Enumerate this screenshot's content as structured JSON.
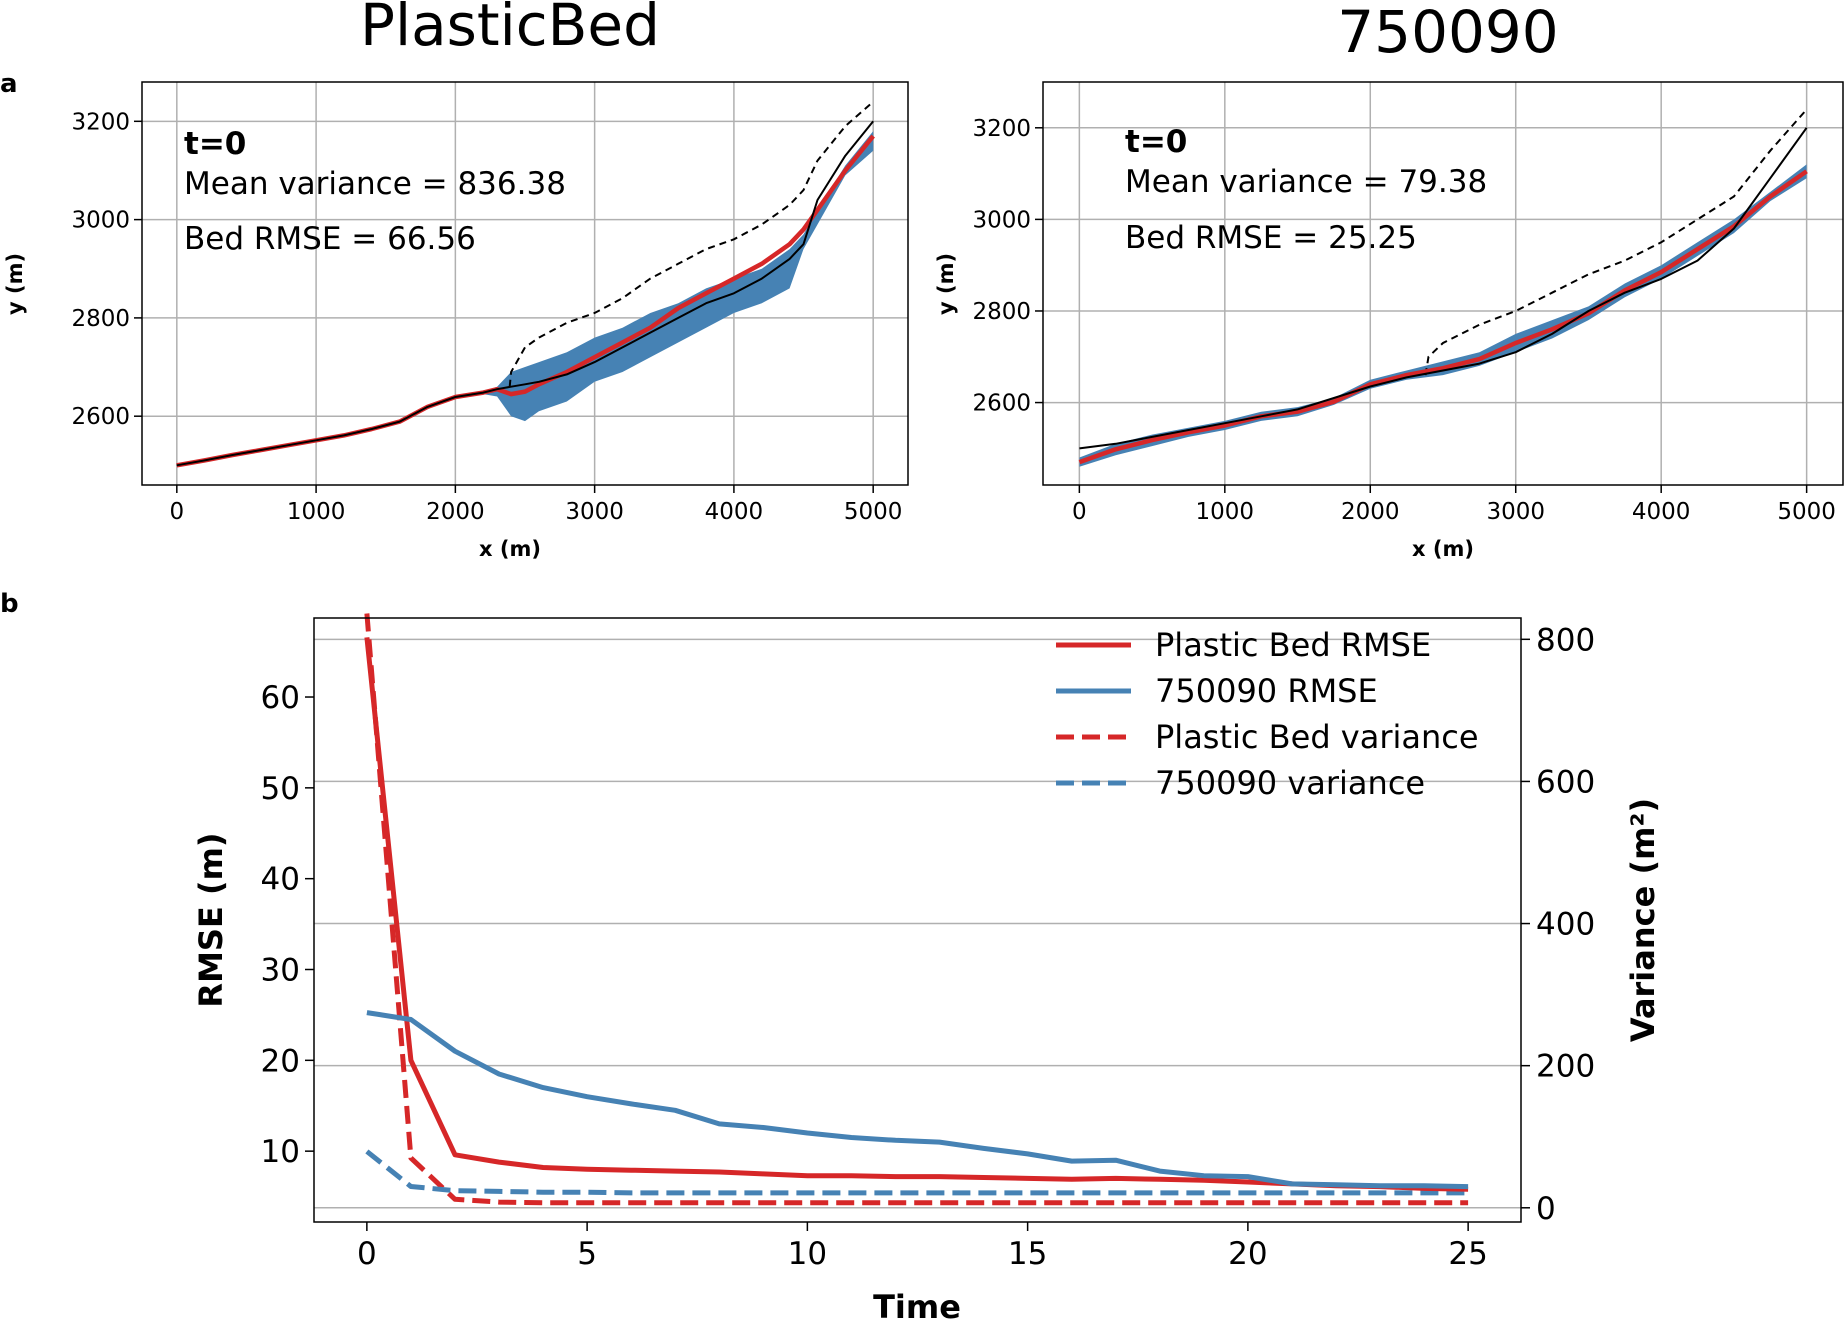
{
  "panel_labels": {
    "a": "a",
    "b": "b"
  },
  "chart_data": [
    {
      "type": "line",
      "id": "plasticbed",
      "title": "PlasticBed",
      "xlabel": "x (m)",
      "ylabel": "y (m)",
      "xlim": [
        -250,
        5250
      ],
      "ylim": [
        2460,
        3280
      ],
      "xticks": [
        0,
        1000,
        2000,
        3000,
        4000,
        5000
      ],
      "yticks": [
        2600,
        2800,
        3000,
        3200
      ],
      "grid": true,
      "annotations": {
        "t": "t=0",
        "mean_variance": "Mean variance = 836.38",
        "rmse": "Bed RMSE = 66.56"
      },
      "colors": {
        "ensemble": "#4682b4",
        "mean": "#d62728",
        "truth": "#000000",
        "surface": "#000000"
      },
      "x": [
        0,
        200,
        400,
        600,
        800,
        1000,
        1200,
        1400,
        1600,
        1800,
        2000,
        2200,
        2300,
        2400,
        2500,
        2600,
        2800,
        3000,
        3200,
        3400,
        3600,
        3800,
        4000,
        4200,
        4400,
        4500,
        4600,
        4800,
        5000
      ],
      "series": [
        {
          "name": "ensemble upper",
          "values": [
            2501,
            2511,
            2522,
            2532,
            2542,
            2552,
            2562,
            2575,
            2590,
            2620,
            2640,
            2650,
            2660,
            2690,
            2700,
            2710,
            2730,
            2760,
            2780,
            2810,
            2830,
            2860,
            2880,
            2900,
            2940,
            2970,
            3020,
            3110,
            3180
          ]
        },
        {
          "name": "ensemble lower",
          "values": [
            2499,
            2509,
            2520,
            2530,
            2540,
            2550,
            2560,
            2573,
            2588,
            2618,
            2638,
            2645,
            2640,
            2600,
            2590,
            2610,
            2630,
            2670,
            2690,
            2720,
            2750,
            2780,
            2810,
            2830,
            2860,
            2940,
            2990,
            3090,
            3140
          ]
        },
        {
          "name": "ensemble mean",
          "values": [
            2500,
            2510,
            2521,
            2531,
            2541,
            2551,
            2561,
            2574,
            2589,
            2619,
            2639,
            2648,
            2655,
            2645,
            2650,
            2665,
            2690,
            2720,
            2750,
            2780,
            2820,
            2850,
            2880,
            2910,
            2950,
            2980,
            3020,
            3100,
            3170
          ]
        },
        {
          "name": "true bed",
          "values": [
            2500,
            2510,
            2521,
            2531,
            2541,
            2551,
            2561,
            2574,
            2589,
            2619,
            2639,
            2648,
            2655,
            2660,
            2665,
            2670,
            2685,
            2710,
            2740,
            2770,
            2800,
            2830,
            2850,
            2880,
            2920,
            2950,
            3040,
            3130,
            3200
          ]
        },
        {
          "name": "surface",
          "x": [
            2390,
            2400,
            2500,
            2600,
            2800,
            3000,
            3200,
            3400,
            3600,
            3800,
            4000,
            4200,
            4400,
            4500,
            4600,
            4800,
            5000
          ],
          "values": [
            2660,
            2690,
            2740,
            2760,
            2790,
            2810,
            2840,
            2880,
            2910,
            2940,
            2960,
            2990,
            3030,
            3060,
            3120,
            3190,
            3240
          ]
        }
      ]
    },
    {
      "type": "line",
      "id": "750090",
      "title": "750090",
      "xlabel": "x (m)",
      "ylabel": "y (m)",
      "xlim": [
        -250,
        5250
      ],
      "ylim": [
        2420,
        3300
      ],
      "xticks": [
        0,
        1000,
        2000,
        3000,
        4000,
        5000
      ],
      "yticks": [
        2600,
        2800,
        3000,
        3200
      ],
      "grid": true,
      "annotations": {
        "t": "t=0",
        "mean_variance": "Mean variance = 79.38",
        "rmse": "Bed RMSE = 25.25"
      },
      "colors": {
        "ensemble": "#4682b4",
        "mean": "#d62728",
        "truth": "#000000",
        "surface": "#000000"
      },
      "x": [
        0,
        250,
        500,
        750,
        1000,
        1250,
        1500,
        1750,
        2000,
        2250,
        2500,
        2750,
        3000,
        3250,
        3500,
        3750,
        4000,
        4250,
        4500,
        4750,
        5000
      ],
      "series": [
        {
          "name": "ensemble upper",
          "values": [
            2480,
            2510,
            2530,
            2545,
            2560,
            2580,
            2590,
            2610,
            2650,
            2670,
            2690,
            2710,
            2750,
            2780,
            2810,
            2860,
            2900,
            2950,
            3000,
            3060,
            3120
          ]
        },
        {
          "name": "ensemble lower",
          "values": [
            2460,
            2485,
            2505,
            2525,
            2540,
            2560,
            2570,
            2595,
            2630,
            2650,
            2660,
            2680,
            2710,
            2740,
            2780,
            2830,
            2870,
            2920,
            2970,
            3040,
            3090
          ]
        },
        {
          "name": "ensemble mean",
          "values": [
            2470,
            2498,
            2518,
            2535,
            2550,
            2570,
            2580,
            2602,
            2640,
            2660,
            2675,
            2695,
            2730,
            2760,
            2795,
            2845,
            2885,
            2935,
            2985,
            3050,
            3105
          ]
        },
        {
          "name": "true bed",
          "values": [
            2500,
            2510,
            2525,
            2540,
            2555,
            2570,
            2585,
            2610,
            2635,
            2655,
            2670,
            2685,
            2710,
            2750,
            2800,
            2840,
            2870,
            2910,
            2980,
            3090,
            3200
          ]
        },
        {
          "name": "surface",
          "x": [
            2380,
            2400,
            2500,
            2750,
            3000,
            3250,
            3500,
            3750,
            4000,
            4250,
            4500,
            4750,
            5000
          ],
          "values": [
            2660,
            2700,
            2730,
            2770,
            2800,
            2840,
            2880,
            2910,
            2950,
            3000,
            3050,
            3150,
            3240
          ]
        }
      ]
    },
    {
      "type": "line",
      "id": "rmse-variance",
      "xlabel": "Time",
      "ylabel": "RMSE (m)",
      "y2label": "Variance (m²)",
      "xlim": [
        -1.2,
        26.2
      ],
      "ylim": [
        2.2,
        68.7
      ],
      "y2lim": [
        -20,
        830
      ],
      "xticks": [
        0,
        5,
        10,
        15,
        20,
        25
      ],
      "yticks": [
        10,
        20,
        30,
        40,
        50,
        60
      ],
      "y2ticks": [
        0,
        200,
        400,
        600,
        800
      ],
      "grid": true,
      "legend": "top-right",
      "x": [
        0,
        1,
        2,
        3,
        4,
        5,
        6,
        7,
        8,
        9,
        10,
        11,
        12,
        13,
        14,
        15,
        16,
        17,
        18,
        19,
        20,
        21,
        22,
        23,
        24,
        25
      ],
      "series": [
        {
          "name": "Plastic Bed RMSE",
          "axis": "left",
          "color": "#d62728",
          "dash": false,
          "values": [
            66.56,
            20.0,
            9.6,
            8.8,
            8.2,
            8.0,
            7.9,
            7.8,
            7.7,
            7.5,
            7.3,
            7.3,
            7.2,
            7.2,
            7.1,
            7.0,
            6.9,
            7.0,
            6.9,
            6.8,
            6.6,
            6.4,
            6.2,
            6.1,
            5.9,
            5.8
          ]
        },
        {
          "name": "750090 RMSE",
          "axis": "left",
          "color": "#4682b4",
          "dash": false,
          "values": [
            25.25,
            24.5,
            21.0,
            18.5,
            17.0,
            16.0,
            15.2,
            14.5,
            13.0,
            12.6,
            12.0,
            11.5,
            11.2,
            11.0,
            10.3,
            9.7,
            8.9,
            9.0,
            7.8,
            7.3,
            7.2,
            6.4,
            6.3,
            6.2,
            6.2,
            6.1
          ]
        },
        {
          "name": "Plastic Bed variance",
          "axis": "right",
          "color": "#d62728",
          "dash": true,
          "values": [
            836.38,
            70,
            12,
            8,
            7,
            7,
            7,
            7,
            7,
            7,
            7,
            7,
            7,
            7,
            7,
            7,
            7,
            7,
            7,
            7,
            7,
            7,
            7,
            7,
            7,
            7
          ]
        },
        {
          "name": "750090 variance",
          "axis": "right",
          "color": "#4682b4",
          "dash": true,
          "values": [
            79.38,
            30,
            24,
            23,
            22,
            22,
            21,
            21,
            21,
            21,
            21,
            21,
            21,
            21,
            21,
            21,
            21,
            21,
            21,
            21,
            21,
            21,
            21,
            21,
            21,
            21
          ]
        }
      ]
    }
  ]
}
